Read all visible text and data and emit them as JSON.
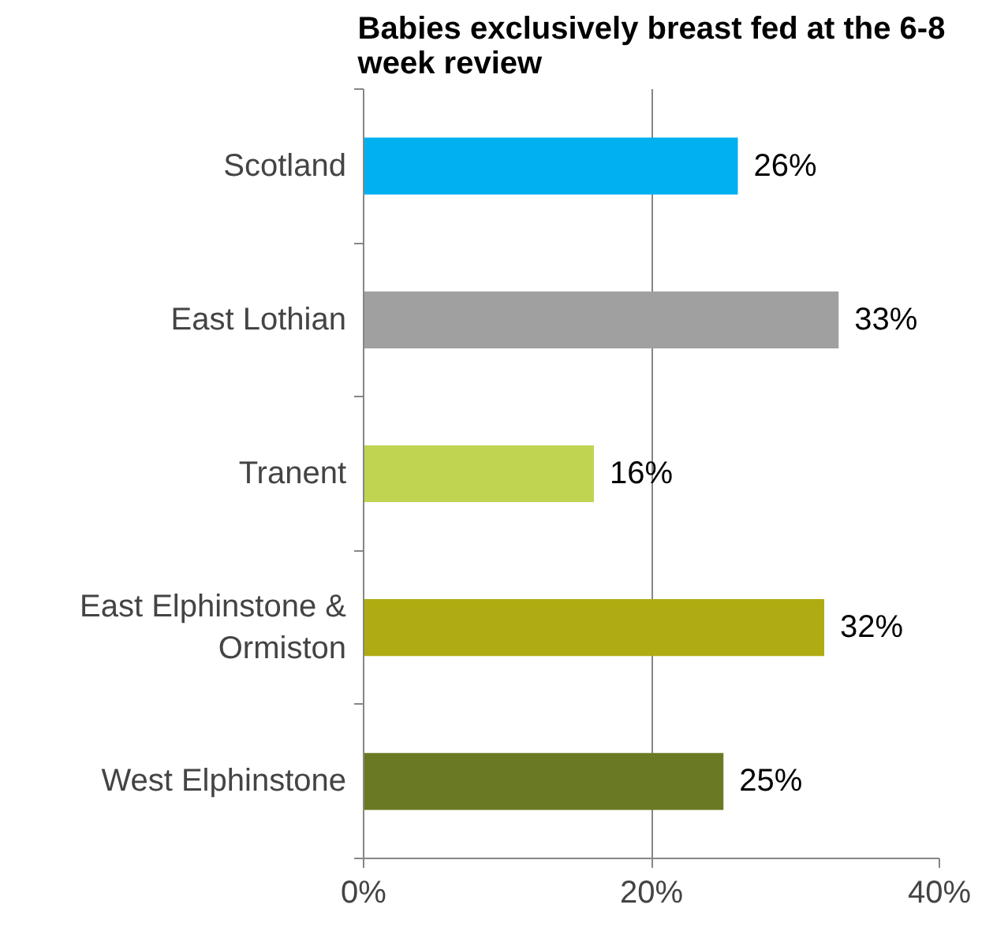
{
  "chart_data": {
    "type": "bar",
    "orientation": "horizontal",
    "title": "Babies exclusively breast fed at the 6-8 week review",
    "categories": [
      "Scotland",
      "East Lothian",
      "Tranent",
      "East Elphinstone & Ormiston",
      "West Elphinstone"
    ],
    "values": [
      26,
      33,
      16,
      32,
      25
    ],
    "colors": [
      "#00b0f0",
      "#a0a0a0",
      "#c0d452",
      "#aeac12",
      "#6a7a22"
    ],
    "value_labels": [
      "26%",
      "33%",
      "16%",
      "32%",
      "25%"
    ],
    "xlim": [
      0,
      40
    ],
    "xticks": [
      {
        "value": 0,
        "label": "0%"
      },
      {
        "value": 20,
        "label": "20%"
      },
      {
        "value": 40,
        "label": "40%"
      }
    ],
    "grid": "x"
  }
}
